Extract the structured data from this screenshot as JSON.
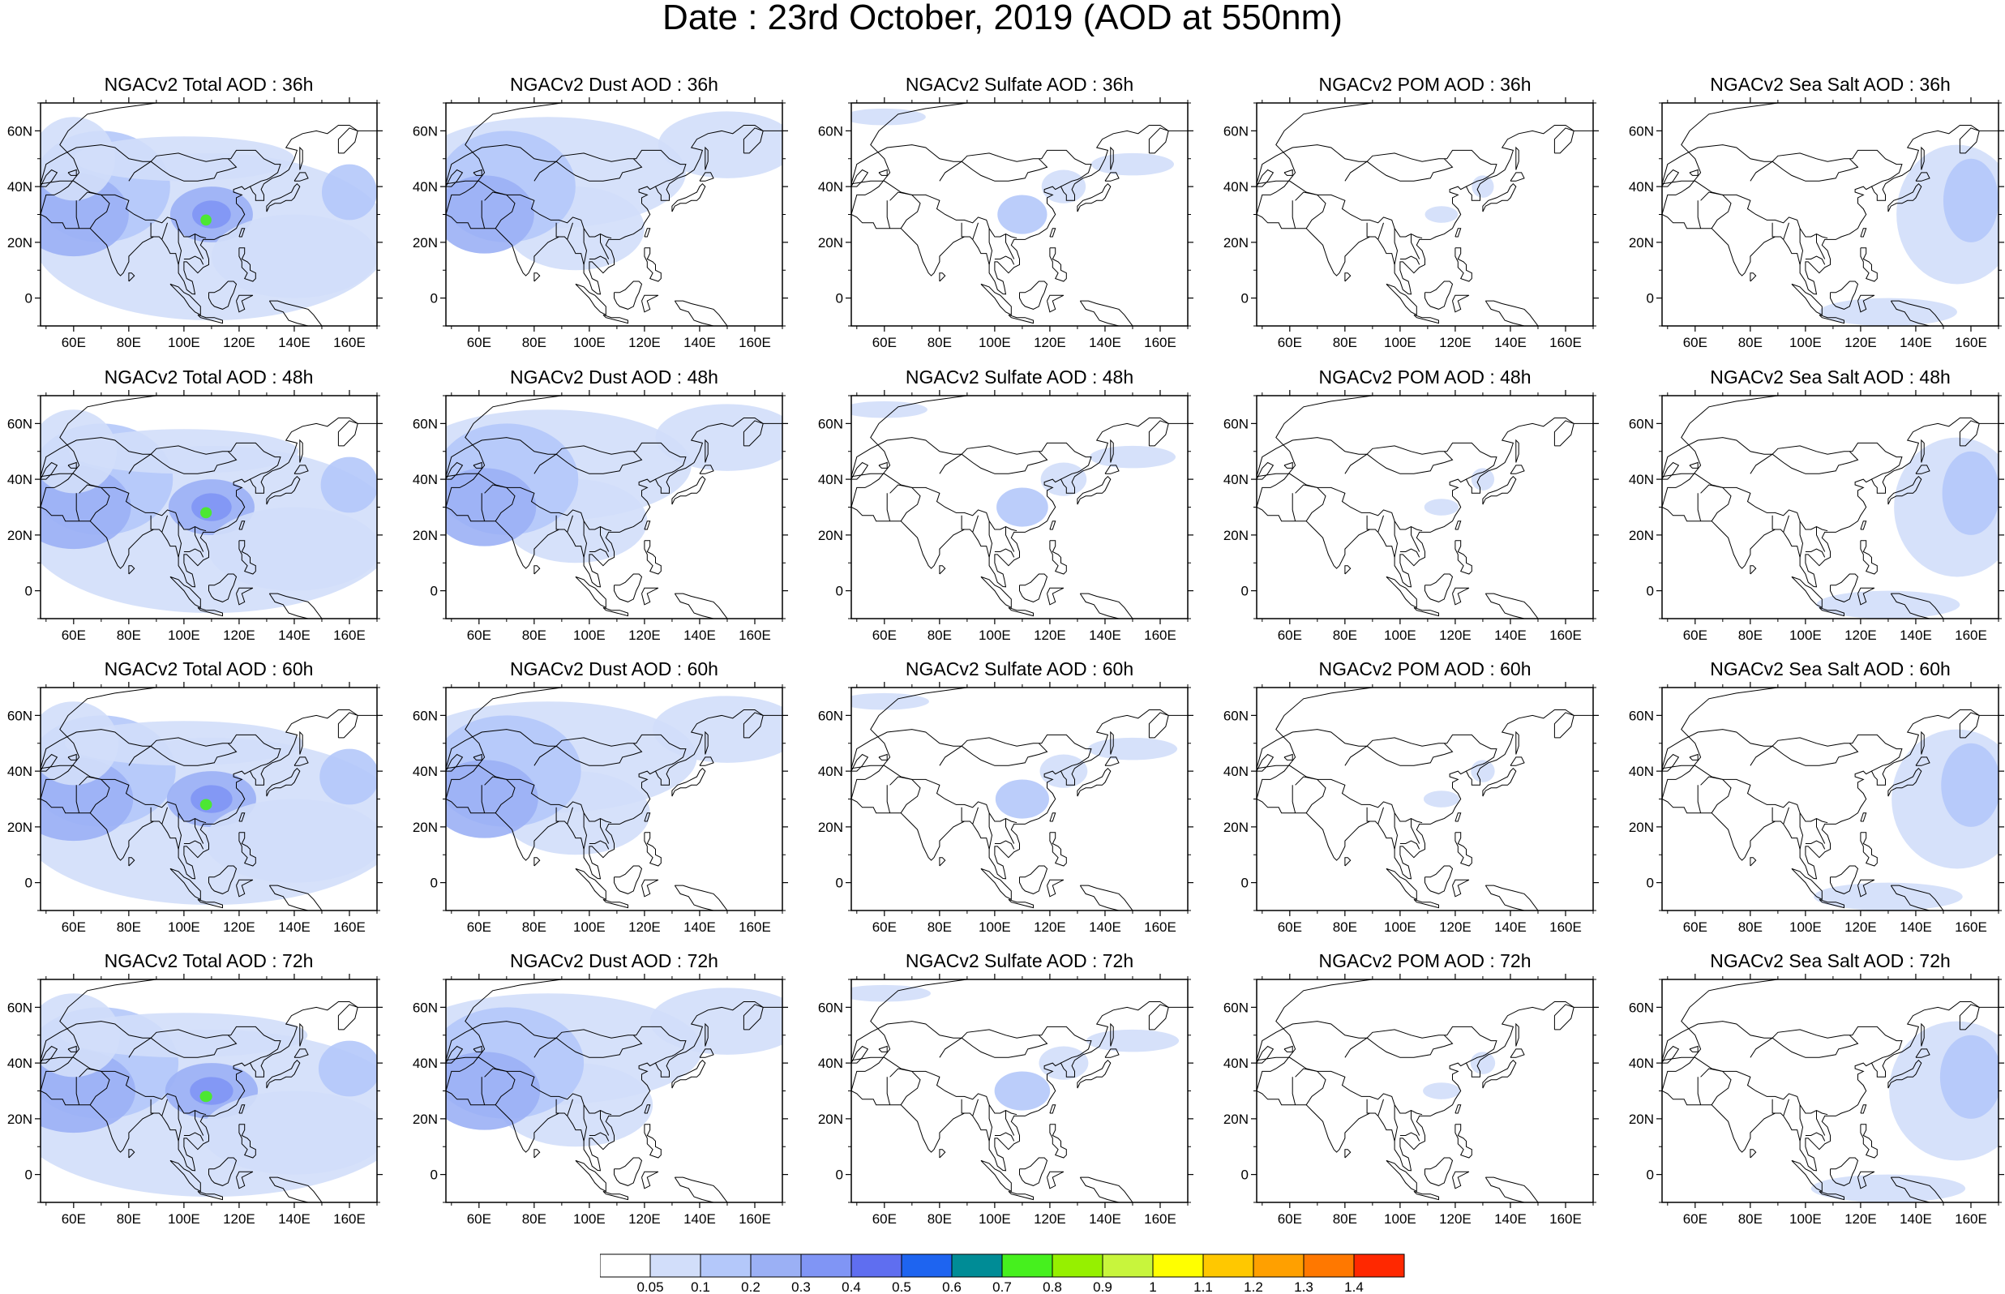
{
  "title": "Date : 23rd October, 2019 (AOD at 550nm)",
  "panel_rows": [
    [
      "NGACv2 Total AOD : 36h",
      "NGACv2 Dust AOD : 36h",
      "NGACv2 Sulfate AOD : 36h",
      "NGACv2 POM AOD : 36h",
      "NGACv2 Sea Salt AOD : 36h"
    ],
    [
      "NGACv2 Total AOD : 48h",
      "NGACv2 Dust AOD : 48h",
      "NGACv2 Sulfate AOD : 48h",
      "NGACv2 POM AOD : 48h",
      "NGACv2 Sea Salt AOD : 48h"
    ],
    [
      "NGACv2 Total AOD : 60h",
      "NGACv2 Dust AOD : 60h",
      "NGACv2 Sulfate AOD : 60h",
      "NGACv2 POM AOD : 60h",
      "NGACv2 Sea Salt AOD : 60h"
    ],
    [
      "NGACv2 Total AOD : 72h",
      "NGACv2 Dust AOD : 72h",
      "NGACv2 Sulfate AOD : 72h",
      "NGACv2 POM AOD : 72h",
      "NGACv2 Sea Salt  AOD : 72h"
    ]
  ],
  "lon_ticks": [
    "60E",
    "80E",
    "100E",
    "120E",
    "140E",
    "160E"
  ],
  "lat_ticks": [
    "60N",
    "40N",
    "20N",
    "0"
  ],
  "colorbar": {
    "labels": [
      "0.05",
      "0.1",
      "0.2",
      "0.3",
      "0.4",
      "0.5",
      "0.6",
      "0.7",
      "0.8",
      "0.9",
      "1",
      "1.1",
      "1.2",
      "1.3",
      "1.4"
    ],
    "colors": [
      "#ffffff",
      "#d2defa",
      "#b4c8fa",
      "#9bb0f5",
      "#8095f5",
      "#5f6ef0",
      "#1e64f0",
      "#008c96",
      "#46f01e",
      "#96f000",
      "#c8f53c",
      "#ffff00",
      "#ffc800",
      "#ffa000",
      "#ff7800",
      "#ff2800"
    ]
  }
}
